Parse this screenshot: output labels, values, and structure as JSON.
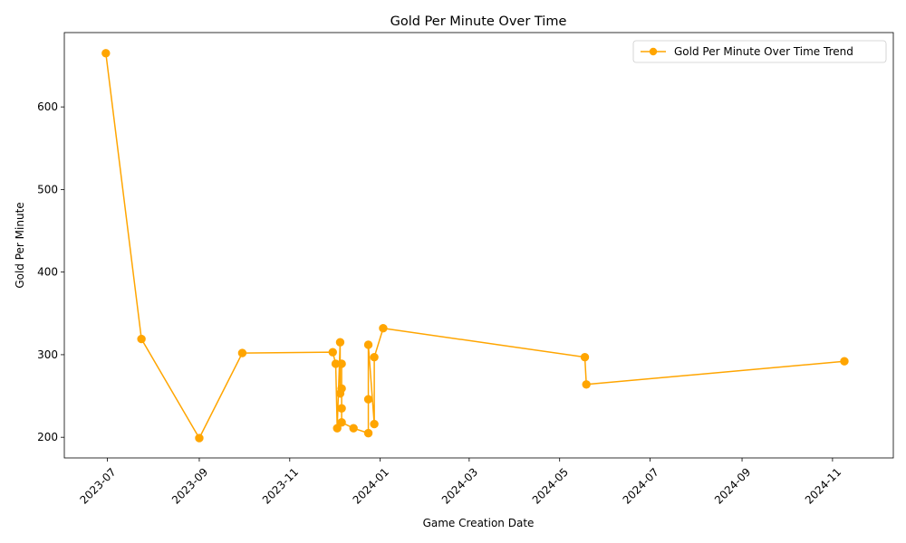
{
  "chart_data": {
    "type": "line",
    "title": "Gold Per Minute Over Time",
    "xlabel": "Game Creation Date",
    "ylabel": "Gold Per Minute",
    "x_axis_type": "date",
    "xlim": [
      "2023-06-02",
      "2024-12-12"
    ],
    "ylim": [
      175,
      690
    ],
    "x_ticks": [
      {
        "date": "2023-07-01",
        "label": "2023-07"
      },
      {
        "date": "2023-09-01",
        "label": "2023-09"
      },
      {
        "date": "2023-11-01",
        "label": "2023-11"
      },
      {
        "date": "2024-01-01",
        "label": "2024-01"
      },
      {
        "date": "2024-03-01",
        "label": "2024-03"
      },
      {
        "date": "2024-05-01",
        "label": "2024-05"
      },
      {
        "date": "2024-07-01",
        "label": "2024-07"
      },
      {
        "date": "2024-09-01",
        "label": "2024-09"
      },
      {
        "date": "2024-11-01",
        "label": "2024-11"
      }
    ],
    "y_ticks": [
      200,
      300,
      400,
      500,
      600
    ],
    "grid": false,
    "legend_position": "top-right",
    "color": "#FFA500",
    "series": [
      {
        "name": "Gold Per Minute Over Time Trend",
        "points": [
          {
            "x": "2023-06-30",
            "y": 665
          },
          {
            "x": "2023-07-24",
            "y": 319
          },
          {
            "x": "2023-09-01",
            "y": 199
          },
          {
            "x": "2023-09-30",
            "y": 302
          },
          {
            "x": "2023-11-30",
            "y": 303
          },
          {
            "x": "2023-12-02",
            "y": 289
          },
          {
            "x": "2023-12-03",
            "y": 211
          },
          {
            "x": "2023-12-05",
            "y": 315
          },
          {
            "x": "2023-12-05",
            "y": 253
          },
          {
            "x": "2023-12-06",
            "y": 259
          },
          {
            "x": "2023-12-06",
            "y": 289
          },
          {
            "x": "2023-12-06",
            "y": 235
          },
          {
            "x": "2023-12-06",
            "y": 218
          },
          {
            "x": "2023-12-14",
            "y": 211
          },
          {
            "x": "2023-12-24",
            "y": 205
          },
          {
            "x": "2023-12-24",
            "y": 246
          },
          {
            "x": "2023-12-24",
            "y": 312
          },
          {
            "x": "2023-12-28",
            "y": 216
          },
          {
            "x": "2023-12-28",
            "y": 297
          },
          {
            "x": "2024-01-03",
            "y": 332
          },
          {
            "x": "2024-05-18",
            "y": 297
          },
          {
            "x": "2024-05-19",
            "y": 264
          },
          {
            "x": "2024-11-09",
            "y": 292
          }
        ]
      }
    ]
  }
}
